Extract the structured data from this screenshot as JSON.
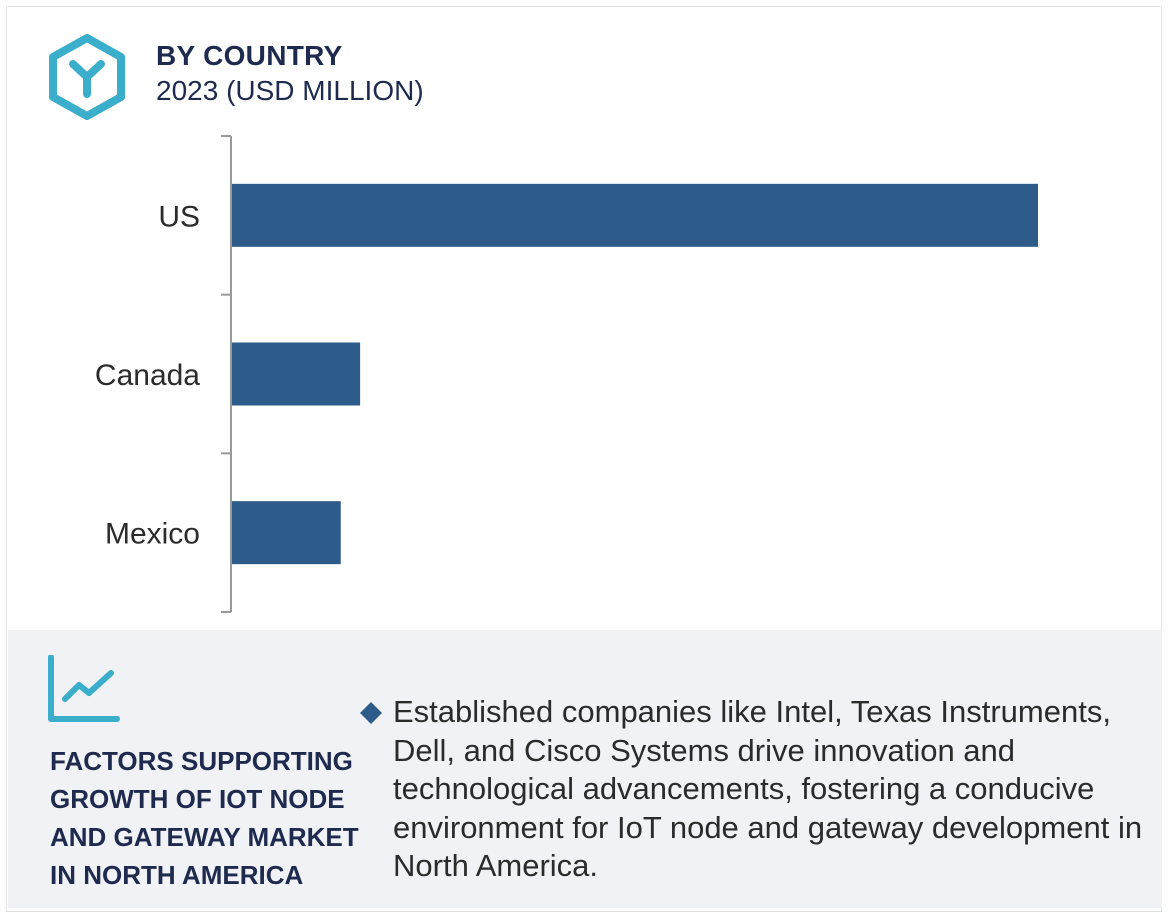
{
  "header": {
    "title": "BY COUNTRY",
    "subtitle": "2023 (USD MILLION)"
  },
  "colors": {
    "bar": "#2e5c8a",
    "accent": "#3aaecb",
    "heading": "#1f2a4f",
    "axis": "#9a9a9a",
    "panel": "#f1f2f6"
  },
  "icons": {
    "logo": "hexagon-y-logo",
    "growth": "line-chart-icon",
    "bullet": "diamond-bullet-icon"
  },
  "chart_data": {
    "type": "bar",
    "orientation": "horizontal",
    "categories": [
      "US",
      "Canada",
      "Mexico"
    ],
    "values": [
      100,
      16,
      13.6
    ],
    "xlim": [
      0,
      100
    ],
    "grid": false,
    "title": "BY COUNTRY",
    "subtitle": "2023 (USD MILLION)",
    "xlabel": "",
    "ylabel": ""
  },
  "factors": {
    "heading": "FACTORS SUPPORTING GROWTH OF IOT NODE AND GATEWAY MARKET IN NORTH AMERICA",
    "points": [
      "Established companies like Intel, Texas Instruments, Dell, and Cisco Systems drive innovation and technological advancements, fostering a conducive environment for IoT node and gateway development in North America."
    ]
  }
}
